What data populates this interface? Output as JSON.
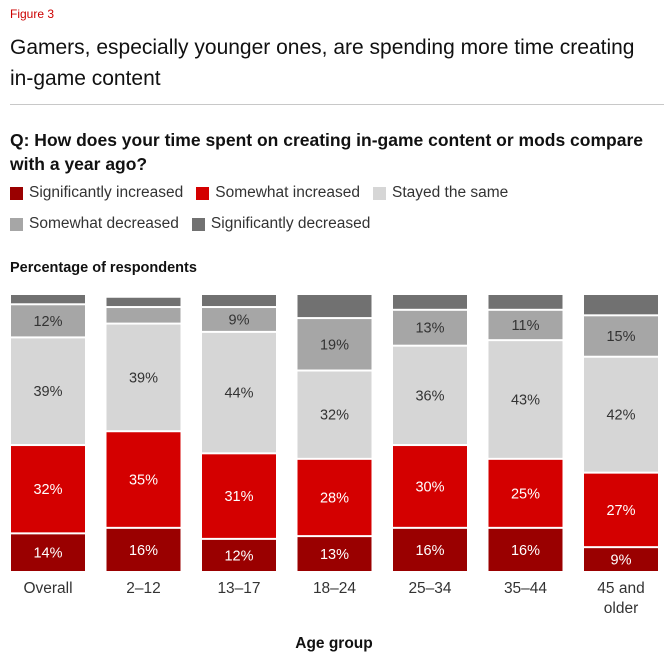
{
  "figure_label": "Figure 3",
  "title": "Gamers, especially younger ones, are spending more time creating in-game content",
  "question": "Q: How does your time spent on creating in-game content or mods compare with a year ago?",
  "subhead": "Percentage of respondents",
  "colors": {
    "Significantly increased": "#9a0000",
    "Somewhat increased": "#d40000",
    "Stayed the same": "#d6d6d6",
    "Somewhat decreased": "#a6a6a6",
    "Significantly decreased": "#717171"
  },
  "chart_data": {
    "type": "bar",
    "stacked": true,
    "orientation": "vertical",
    "title": "Q: How does your time spent on creating in-game content or mods compare with a year ago?",
    "ylabel": "Percentage of respondents",
    "xlabel": "Age group",
    "ylim": [
      0,
      100
    ],
    "categories": [
      "Overall",
      "2–12",
      "13–17",
      "18–24",
      "25–34",
      "35–44",
      "45 and older"
    ],
    "series": [
      {
        "name": "Significantly increased",
        "values": [
          14,
          16,
          12,
          13,
          16,
          16,
          9
        ],
        "labels": [
          "14%",
          "16%",
          "12%",
          "13%",
          "16%",
          "16%",
          "9%"
        ]
      },
      {
        "name": "Somewhat increased",
        "values": [
          32,
          35,
          31,
          28,
          30,
          25,
          27
        ],
        "labels": [
          "32%",
          "35%",
          "31%",
          "28%",
          "30%",
          "25%",
          "27%"
        ]
      },
      {
        "name": "Stayed the same",
        "values": [
          39,
          39,
          44,
          32,
          36,
          43,
          42
        ],
        "labels": [
          "39%",
          "39%",
          "44%",
          "32%",
          "36%",
          "43%",
          "42%"
        ]
      },
      {
        "name": "Somewhat decreased",
        "values": [
          12,
          6,
          9,
          19,
          13,
          11,
          15
        ],
        "labels": [
          "12%",
          "",
          "9%",
          "19%",
          "13%",
          "11%",
          "15%"
        ]
      },
      {
        "name": "Significantly decreased",
        "values": [
          3,
          3,
          4,
          8,
          5,
          5,
          7
        ],
        "labels": [
          "",
          "",
          "",
          "",
          "",
          "",
          ""
        ]
      }
    ]
  }
}
